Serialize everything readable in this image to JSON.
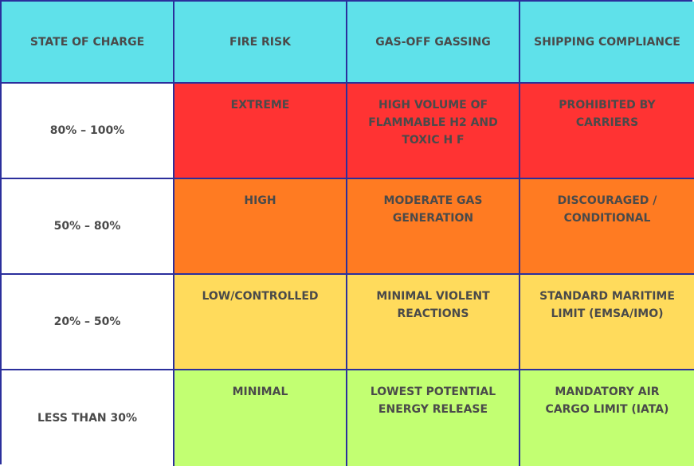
{
  "table": {
    "headers": [
      "STATE OF CHARGE",
      "FIRE RISK",
      "GAS-OFF GASSING",
      "SHIPPING COMPLIANCE"
    ],
    "rows": [
      {
        "state_of_charge": "80% – 100%",
        "fire_risk": "EXTREME",
        "gas_off_gassing": "HIGH VOLUME OF FLAMMABLE H2 AND TOXIC H F",
        "shipping_compliance": "PROHIBITED BY CARRIERS",
        "color": "#ff3333"
      },
      {
        "state_of_charge": "50% – 80%",
        "fire_risk": "HIGH",
        "gas_off_gassing": "MODERATE GAS GENERATION",
        "shipping_compliance": "DISCOURAGED / CONDITIONAL",
        "color": "#ff7b22"
      },
      {
        "state_of_charge": "20% – 50%",
        "fire_risk": "LOW/CONTROLLED",
        "gas_off_gassing": "MINIMAL VIOLENT REACTIONS",
        "shipping_compliance": "STANDARD MARITIME LIMIT (EMSA/IMO)",
        "color": "#ffdb5c"
      },
      {
        "state_of_charge": "LESS THAN 30%",
        "fire_risk": "MINIMAL",
        "gas_off_gassing": "LOWEST POTENTIAL ENERGY RELEASE",
        "shipping_compliance": "MANDATORY AIR CARGO LIMIT (IATA)",
        "color": "#c2ff72"
      }
    ],
    "header_color": "#5fe1ea",
    "border_color": "#2b2f9c"
  }
}
